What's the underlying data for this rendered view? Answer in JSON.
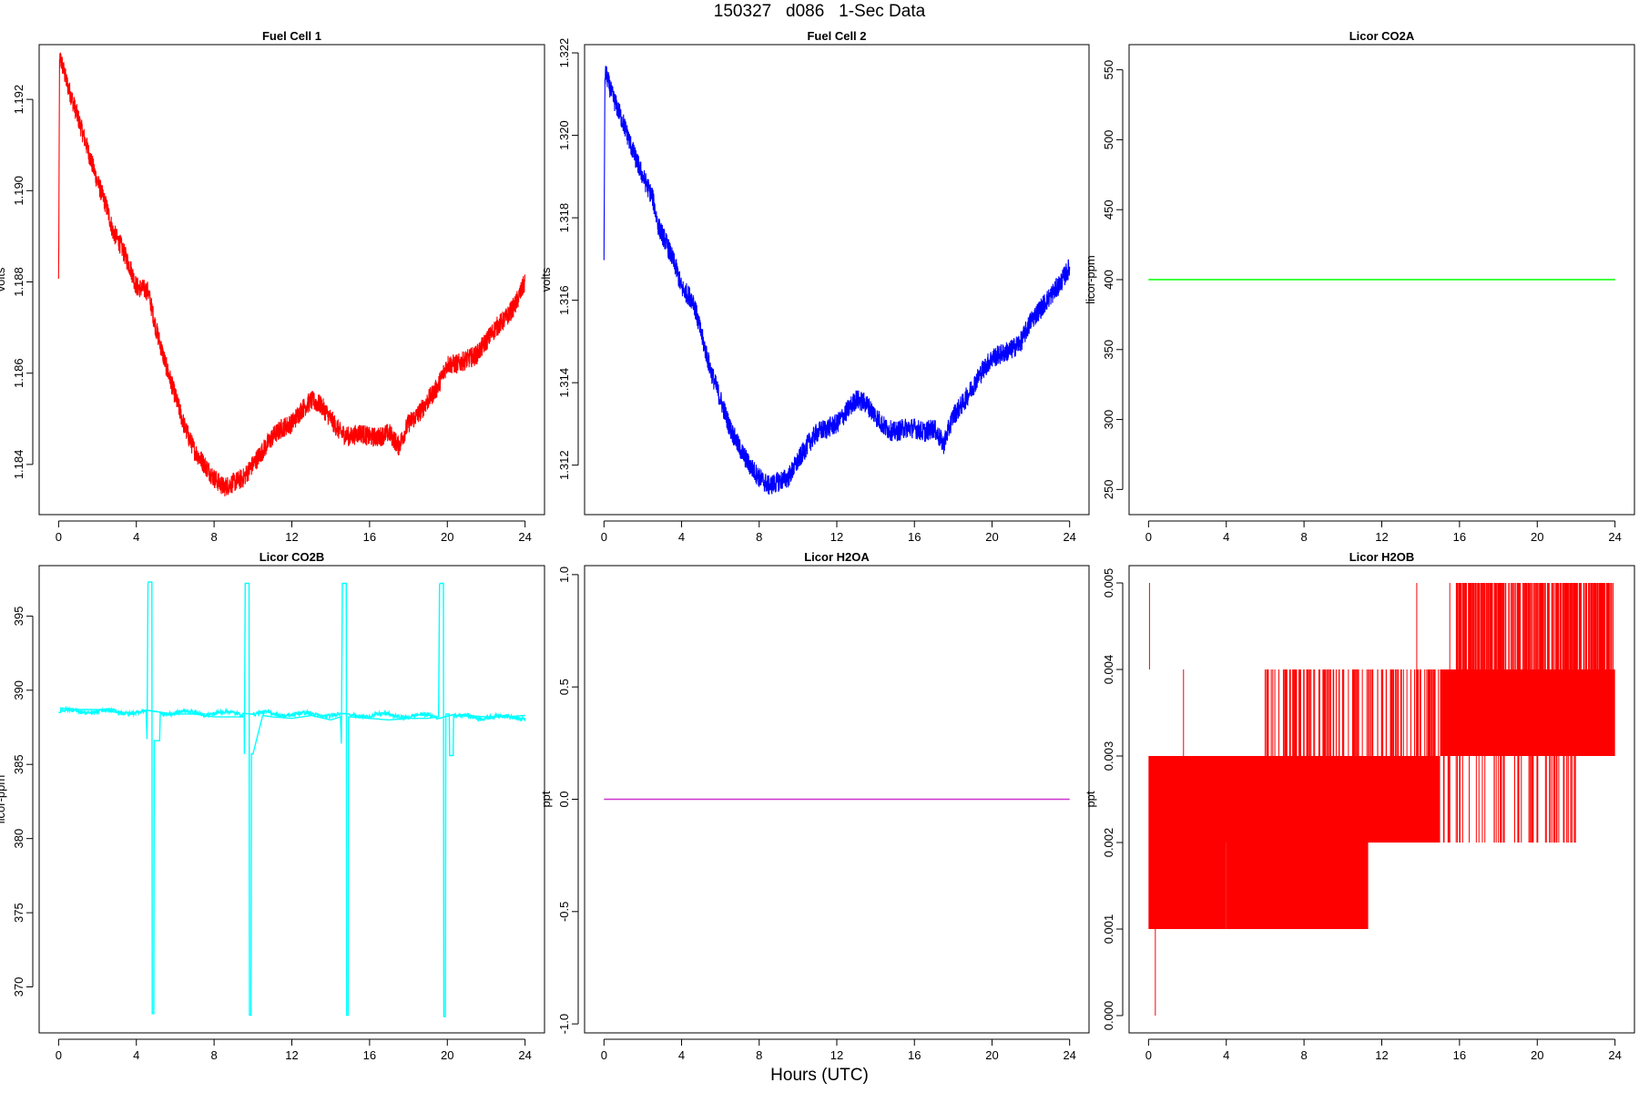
{
  "figure": {
    "suptitle": "150327   d086   1-Sec Data",
    "xlabel": "Hours (UTC)"
  },
  "chart_data": [
    {
      "type": "line",
      "title": "Fuel Cell 1",
      "xlabel": "",
      "ylabel": "volts",
      "color": "#ff0000",
      "xlim": [
        -1,
        25
      ],
      "ylim": [
        1.1829,
        1.1932
      ],
      "xticks": [
        0,
        4,
        8,
        12,
        16,
        20,
        24
      ],
      "yticks": [
        1.184,
        1.186,
        1.188,
        1.19,
        1.192
      ],
      "ytick_labels": [
        "1.184",
        "1.186",
        "1.188",
        "1.190",
        "1.192"
      ],
      "noise": 0.00022,
      "series": [
        {
          "x": [
            0,
            0.05,
            0.1,
            0.4,
            1.0,
            1.5,
            2.0,
            2.5,
            2.8,
            3.2,
            3.7,
            4.0,
            4.6,
            5.0,
            5.5,
            6.0,
            6.5,
            7.0,
            7.5,
            8.0,
            8.5,
            9.0,
            9.5,
            10.0,
            10.5,
            11.0,
            11.5,
            12.0,
            12.5,
            13.0,
            13.5,
            14.0,
            14.5,
            15.0,
            15.5,
            16.0,
            16.5,
            17.0,
            17.5,
            18.0,
            18.5,
            19.0,
            19.5,
            20.0,
            20.5,
            21.0,
            21.5,
            22.0,
            22.5,
            23.0,
            23.5,
            24.0
          ],
          "y": [
            1.188,
            1.1928,
            1.1929,
            1.1924,
            1.1916,
            1.1909,
            1.1902,
            1.1896,
            1.1891,
            1.1888,
            1.1883,
            1.1879,
            1.1878,
            1.187,
            1.1862,
            1.1855,
            1.1848,
            1.1843,
            1.184,
            1.1837,
            1.1835,
            1.1836,
            1.1837,
            1.184,
            1.1843,
            1.1846,
            1.1848,
            1.1849,
            1.1852,
            1.1854,
            1.1853,
            1.185,
            1.1847,
            1.1846,
            1.1847,
            1.1846,
            1.1846,
            1.1847,
            1.1844,
            1.1849,
            1.1851,
            1.1854,
            1.1857,
            1.1862,
            1.1862,
            1.1863,
            1.1864,
            1.1867,
            1.187,
            1.1872,
            1.1875,
            1.188
          ]
        }
      ]
    },
    {
      "type": "line",
      "title": "Fuel Cell 2",
      "xlabel": "",
      "ylabel": "volts",
      "color": "#0000ff",
      "xlim": [
        -1,
        25
      ],
      "ylim": [
        1.3108,
        1.3222
      ],
      "xticks": [
        0,
        4,
        8,
        12,
        16,
        20,
        24
      ],
      "yticks": [
        1.312,
        1.314,
        1.316,
        1.318,
        1.32,
        1.322
      ],
      "ytick_labels": [
        "1.312",
        "1.314",
        "1.316",
        "1.318",
        "1.320",
        "1.322"
      ],
      "noise": 0.00025,
      "series": [
        {
          "x": [
            0,
            0.05,
            0.1,
            0.4,
            1.0,
            1.5,
            2.0,
            2.5,
            2.8,
            3.2,
            3.7,
            4.0,
            4.6,
            5.0,
            5.5,
            6.0,
            6.5,
            7.0,
            7.5,
            8.0,
            8.5,
            9.0,
            9.5,
            10.0,
            10.5,
            11.0,
            11.5,
            12.0,
            12.5,
            13.0,
            13.5,
            14.0,
            14.5,
            15.0,
            15.5,
            16.0,
            16.5,
            17.0,
            17.5,
            18.0,
            18.5,
            19.0,
            19.5,
            20.0,
            20.5,
            21.0,
            21.5,
            22.0,
            22.5,
            23.0,
            23.5,
            24.0
          ],
          "y": [
            1.317,
            1.3214,
            1.3215,
            1.321,
            1.3203,
            1.3196,
            1.319,
            1.3185,
            1.3178,
            1.3174,
            1.3168,
            1.3163,
            1.316,
            1.3152,
            1.3143,
            1.3136,
            1.3129,
            1.3124,
            1.312,
            1.3117,
            1.3115,
            1.3116,
            1.3117,
            1.3121,
            1.3125,
            1.3128,
            1.3129,
            1.313,
            1.3133,
            1.3136,
            1.3135,
            1.3132,
            1.3129,
            1.3128,
            1.3129,
            1.3129,
            1.3128,
            1.3129,
            1.3125,
            1.3132,
            1.3135,
            1.3139,
            1.3143,
            1.3146,
            1.3147,
            1.3148,
            1.315,
            1.3155,
            1.3158,
            1.3161,
            1.3164,
            1.3168
          ]
        }
      ]
    },
    {
      "type": "line",
      "title": "Licor CO2A",
      "xlabel": "",
      "ylabel": "licor-ppm",
      "color": "#00ff00",
      "xlim": [
        -1,
        25
      ],
      "ylim": [
        232,
        568
      ],
      "xticks": [
        0,
        4,
        8,
        12,
        16,
        20,
        24
      ],
      "yticks": [
        250,
        300,
        350,
        400,
        450,
        500,
        550
      ],
      "ytick_labels": [
        "250",
        "300",
        "350",
        "400",
        "450",
        "500",
        "550"
      ],
      "noise": 0,
      "series": [
        {
          "x": [
            0,
            24
          ],
          "y": [
            400,
            400
          ]
        }
      ]
    },
    {
      "type": "line",
      "title": "Licor CO2B",
      "xlabel": "",
      "ylabel": "licor-ppm",
      "color": "#00ffff",
      "xlim": [
        -1,
        25
      ],
      "ylim": [
        366.9,
        398.4
      ],
      "xticks": [
        0,
        4,
        8,
        12,
        16,
        20,
        24
      ],
      "yticks": [
        370,
        375,
        380,
        385,
        390,
        395
      ],
      "ytick_labels": [
        "370",
        "375",
        "380",
        "385",
        "390",
        "395"
      ],
      "noise": 0.12,
      "series": [
        {
          "x": [
            0,
            0.1,
            0.11,
            1.0,
            2.0,
            3.0,
            4.0,
            4.5,
            4.55,
            4.6,
            4.62,
            4.8,
            4.82,
            4.9,
            4.92,
            5.2,
            5.23,
            6.0,
            7.0,
            8.0,
            9.0,
            9.55,
            9.56,
            9.6,
            9.62,
            9.8,
            9.82,
            9.9,
            9.92,
            10.0,
            10.5,
            11.0,
            12.0,
            13.0,
            14.0,
            14.5,
            14.55,
            14.6,
            14.62,
            14.8,
            14.82,
            14.9,
            14.92,
            15.0,
            16.0,
            17.0,
            18.0,
            19.0,
            19.5,
            19.55,
            19.6,
            19.62,
            19.8,
            19.82,
            19.9,
            19.92,
            20.1,
            20.12,
            20.3,
            20.32,
            21.0,
            22.0,
            23.0,
            24.0
          ],
          "y": [
            388.5,
            388.5,
            388.8,
            388.7,
            388.7,
            388.5,
            388.5,
            388.6,
            386.7,
            397.2,
            397.3,
            397.3,
            368.2,
            368.2,
            386.6,
            386.6,
            388.5,
            388.4,
            388.4,
            388.2,
            388.2,
            388.2,
            385.7,
            397.2,
            397.2,
            397.2,
            368.1,
            368.1,
            385.7,
            385.7,
            388.3,
            388.2,
            388.1,
            388.3,
            388.0,
            388.2,
            386.4,
            397.2,
            397.2,
            397.2,
            368.1,
            368.1,
            388.2,
            388.2,
            388.1,
            388.0,
            388.1,
            388.1,
            388.2,
            388.2,
            397.1,
            397.2,
            397.2,
            368.0,
            368.0,
            388.4,
            388.4,
            385.6,
            385.6,
            388.3,
            388.3,
            388.2,
            388.2,
            388.3
          ]
        }
      ]
    },
    {
      "type": "line",
      "title": "Licor H2OA",
      "xlabel": "",
      "ylabel": "ppt",
      "color": "#cc33cc",
      "xlim": [
        -1,
        25
      ],
      "ylim": [
        -1.04,
        1.04
      ],
      "xticks": [
        0,
        4,
        8,
        12,
        16,
        20,
        24
      ],
      "yticks": [
        -1.0,
        -0.5,
        0.0,
        0.5,
        1.0
      ],
      "ytick_labels": [
        "-1.0",
        "-0.5",
        "0.0",
        "0.5",
        "1.0"
      ],
      "noise": 0,
      "series": [
        {
          "x": [
            0,
            24
          ],
          "y": [
            0,
            0
          ]
        }
      ]
    },
    {
      "type": "line",
      "title": "Licor H2OB",
      "xlabel": "",
      "ylabel": "ppt",
      "color": "#ff0000",
      "xlim": [
        -1,
        25
      ],
      "ylim": [
        -0.0002,
        0.0052
      ],
      "xticks": [
        0,
        4,
        8,
        12,
        16,
        20,
        24
      ],
      "yticks": [
        0.0,
        0.001,
        0.002,
        0.003,
        0.004,
        0.005
      ],
      "ytick_labels": [
        "0.000",
        "0.001",
        "0.002",
        "0.003",
        "0.004",
        "0.005"
      ],
      "noise": 0,
      "quantized_bands": [
        {
          "x": [
            0.0,
            4.0
          ],
          "low": 0.001,
          "high": 0.003
        },
        {
          "x": [
            4.0,
            8.0
          ],
          "low": 0.001,
          "high": 0.003
        },
        {
          "x": [
            8.0,
            11.3
          ],
          "low": 0.001,
          "high": 0.003
        },
        {
          "x": [
            8.0,
            15.0
          ],
          "low": 0.002,
          "high": 0.003
        },
        {
          "x": [
            15.0,
            24.0
          ],
          "low": 0.003,
          "high": 0.004
        }
      ],
      "spikes": {
        "to_005": [
          0.05,
          13.8,
          15.5,
          16.0,
          16.3,
          16.7,
          17.0,
          17.2,
          17.6,
          18.0,
          18.3,
          18.7,
          19.0,
          19.3,
          19.6,
          20.0,
          20.3,
          20.6,
          21.0,
          21.3,
          21.6,
          22.0,
          22.4,
          22.8,
          23.2,
          23.6,
          23.9
        ],
        "to_004": [
          1.8,
          6.0,
          6.5,
          7.0,
          7.5,
          8.0,
          8.5,
          9.0,
          9.5,
          10.0,
          10.5,
          11.0,
          11.5,
          12.0,
          12.5,
          13.0,
          13.5,
          14.0,
          14.5
        ],
        "to_002": [
          15.5,
          16.0,
          17.0,
          18.0,
          19.0,
          20.0,
          21.0,
          21.9
        ],
        "to_000": [
          0.35
        ]
      }
    }
  ]
}
